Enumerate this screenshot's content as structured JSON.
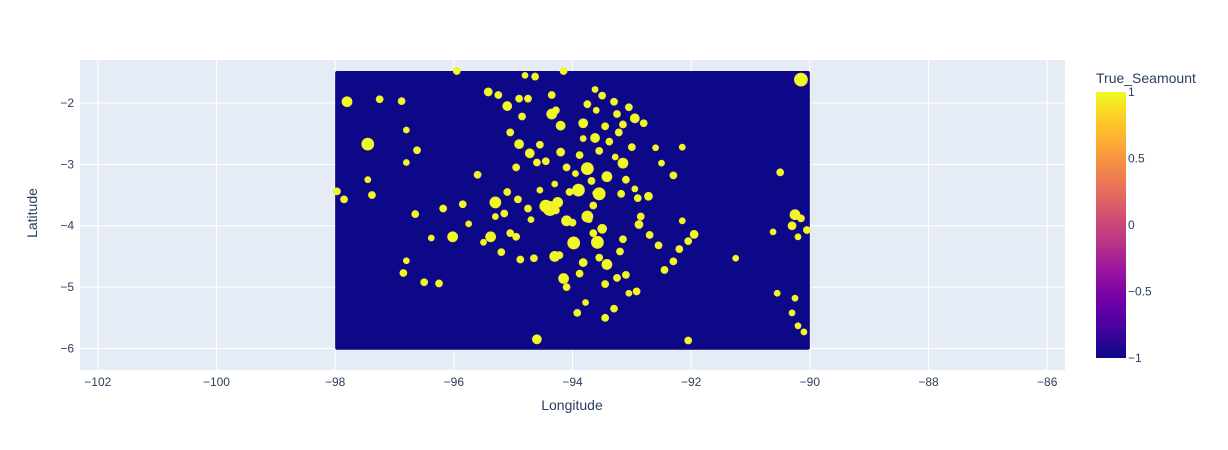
{
  "chart_data": {
    "type": "scatter",
    "xlabel": "Longitude",
    "ylabel": "Latitude",
    "xlim": [
      -102.3,
      -85.7
    ],
    "ylim": [
      -6.35,
      -1.3
    ],
    "x_ticks": [
      -102,
      -100,
      -98,
      -96,
      -94,
      -92,
      -90,
      -88,
      -86
    ],
    "x_tick_labels": [
      "−102",
      "−100",
      "−98",
      "−96",
      "−94",
      "−92",
      "−90",
      "−88",
      "−86"
    ],
    "y_ticks": [
      -2,
      -3,
      -4,
      -5,
      -6
    ],
    "y_tick_labels": [
      "−2",
      "−3",
      "−4",
      "−5",
      "−6"
    ],
    "grid": true,
    "background_color": "#e5ecf6",
    "colorbar": {
      "title": "True_Seamount",
      "min": -1,
      "max": 1,
      "ticks": [
        1,
        0.5,
        0,
        -0.5,
        -1
      ],
      "tick_labels": [
        "1",
        "0.5",
        "0",
        "−0.5",
        "−1"
      ],
      "colorscale": [
        "#0d0887",
        "#46039f",
        "#7201a8",
        "#9c179e",
        "#bd3786",
        "#d8576b",
        "#ed7953",
        "#fb9f3a",
        "#fdca26",
        "#f0f921"
      ]
    },
    "background_region": {
      "x": [
        -98,
        -90
      ],
      "y": [
        -6.02,
        -1.48
      ],
      "value": -1,
      "color": "#0d0887"
    },
    "series": [
      {
        "value": 1,
        "color": "#f0f921",
        "points": [
          [
            -97.8,
            -1.98,
            5
          ],
          [
            -97.25,
            -1.94,
            3.5
          ],
          [
            -96.88,
            -1.97,
            3.5
          ],
          [
            -96.8,
            -2.44,
            3
          ],
          [
            -96.62,
            -2.77,
            3.5
          ],
          [
            -96.8,
            -2.97,
            3
          ],
          [
            -97.45,
            -2.67,
            6
          ],
          [
            -97.45,
            -3.25,
            3
          ],
          [
            -97.38,
            -3.5,
            3.5
          ],
          [
            -97.97,
            -3.44,
            3.5
          ],
          [
            -97.85,
            -3.57,
            3.5
          ],
          [
            -96.65,
            -3.81,
            3.5
          ],
          [
            -96.38,
            -4.2,
            3
          ],
          [
            -96.18,
            -3.72,
            3.5
          ],
          [
            -96.02,
            -4.18,
            5
          ],
          [
            -95.85,
            -3.65,
            3.5
          ],
          [
            -95.75,
            -3.97,
            3
          ],
          [
            -96.8,
            -4.57,
            3
          ],
          [
            -96.85,
            -4.77,
            3.5
          ],
          [
            -96.5,
            -4.92,
            3.5
          ],
          [
            -96.25,
            -4.94,
            3.5
          ],
          [
            -95.6,
            -3.17,
            3.5
          ],
          [
            -95.5,
            -4.27,
            3
          ],
          [
            -95.38,
            -4.18,
            5
          ],
          [
            -95.3,
            -3.62,
            5.5
          ],
          [
            -95.3,
            -3.85,
            3
          ],
          [
            -95.2,
            -4.43,
            3.5
          ],
          [
            -95.15,
            -3.8,
            3.5
          ],
          [
            -95.05,
            -4.12,
            3.5
          ],
          [
            -94.95,
            -4.18,
            3.5
          ],
          [
            -94.88,
            -4.55,
            3.5
          ],
          [
            -94.75,
            -3.72,
            3.5
          ],
          [
            -94.7,
            -3.9,
            3
          ],
          [
            -94.65,
            -4.53,
            3.5
          ],
          [
            -94.6,
            -5.85,
            4.5
          ],
          [
            -94.38,
            -3.72,
            7
          ],
          [
            -94.3,
            -4.5,
            5
          ],
          [
            -94.28,
            -3.75,
            3.5
          ],
          [
            -94.22,
            -4.48,
            3.5
          ],
          [
            -94.15,
            -4.86,
            5
          ],
          [
            -94.1,
            -3.92,
            5
          ],
          [
            -94.1,
            -5.0,
            3.5
          ],
          [
            -94.0,
            -3.95,
            3.5
          ],
          [
            -93.98,
            -4.28,
            6
          ],
          [
            -93.92,
            -5.42,
            3.5
          ],
          [
            -93.88,
            -4.78,
            3.5
          ],
          [
            -93.82,
            -4.6,
            4
          ],
          [
            -93.78,
            -5.25,
            3
          ],
          [
            -93.75,
            -3.85,
            5.5
          ],
          [
            -93.65,
            -4.12,
            3.5
          ],
          [
            -93.58,
            -4.27,
            6
          ],
          [
            -93.55,
            -4.52,
            3.5
          ],
          [
            -93.5,
            -4.05,
            4.5
          ],
          [
            -93.45,
            -4.95,
            3.5
          ],
          [
            -93.45,
            -5.5,
            3.5
          ],
          [
            -93.42,
            -4.63,
            5
          ],
          [
            -93.3,
            -5.35,
            3.5
          ],
          [
            -93.25,
            -4.85,
            3.5
          ],
          [
            -93.2,
            -4.42,
            3.5
          ],
          [
            -93.15,
            -4.22,
            3.5
          ],
          [
            -93.1,
            -4.8,
            3.5
          ],
          [
            -93.05,
            -5.1,
            3
          ],
          [
            -92.92,
            -5.07,
            3.5
          ],
          [
            -92.88,
            -3.98,
            4
          ],
          [
            -92.7,
            -4.15,
            3.5
          ],
          [
            -92.55,
            -4.32,
            3.5
          ],
          [
            -92.45,
            -4.72,
            3.5
          ],
          [
            -92.3,
            -4.58,
            3.5
          ],
          [
            -92.2,
            -4.38,
            3.5
          ],
          [
            -92.15,
            -3.92,
            3
          ],
          [
            -92.05,
            -4.25,
            3.5
          ],
          [
            -91.95,
            -4.14,
            4
          ],
          [
            -92.05,
            -5.87,
            3.5
          ],
          [
            -91.25,
            -4.53,
            3
          ],
          [
            -95.05,
            -2.48,
            3.5
          ],
          [
            -94.9,
            -2.67,
            4.5
          ],
          [
            -94.85,
            -2.22,
            3.5
          ],
          [
            -94.72,
            -2.82,
            4.5
          ],
          [
            -94.6,
            -2.97,
            3.5
          ],
          [
            -94.55,
            -2.68,
            3.5
          ],
          [
            -94.45,
            -2.95,
            3.5
          ],
          [
            -94.35,
            -2.18,
            5
          ],
          [
            -94.35,
            -1.87,
            3.5
          ],
          [
            -94.28,
            -2.12,
            3.5
          ],
          [
            -94.2,
            -2.8,
            4
          ],
          [
            -94.2,
            -2.37,
            4.5
          ],
          [
            -94.1,
            -3.05,
            3.5
          ],
          [
            -94.05,
            -3.45,
            3.5
          ],
          [
            -93.95,
            -3.15,
            3
          ],
          [
            -93.9,
            -3.42,
            6
          ],
          [
            -93.88,
            -2.85,
            3.5
          ],
          [
            -93.82,
            -2.33,
            4.5
          ],
          [
            -93.75,
            -3.07,
            6
          ],
          [
            -93.75,
            -2.02,
            3.5
          ],
          [
            -93.68,
            -3.27,
            3.5
          ],
          [
            -93.65,
            -3.67,
            3.5
          ],
          [
            -93.62,
            -2.57,
            4.5
          ],
          [
            -93.6,
            -2.12,
            3
          ],
          [
            -93.55,
            -3.48,
            6
          ],
          [
            -93.5,
            -1.88,
            3.5
          ],
          [
            -93.45,
            -2.38,
            3.5
          ],
          [
            -93.42,
            -3.2,
            5
          ],
          [
            -93.38,
            -2.63,
            3.5
          ],
          [
            -93.3,
            -1.98,
            3.5
          ],
          [
            -93.28,
            -2.88,
            3
          ],
          [
            -93.25,
            -2.18,
            3.5
          ],
          [
            -93.22,
            -2.48,
            3.5
          ],
          [
            -93.18,
            -3.48,
            3.5
          ],
          [
            -93.15,
            -2.98,
            5
          ],
          [
            -93.1,
            -3.25,
            3.5
          ],
          [
            -93.0,
            -2.72,
            3.5
          ],
          [
            -92.95,
            -2.25,
            4.5
          ],
          [
            -92.85,
            -3.85,
            3.5
          ],
          [
            -92.8,
            -2.33,
            3.5
          ],
          [
            -92.72,
            -3.52,
            4
          ],
          [
            -92.5,
            -2.98,
            3
          ],
          [
            -92.3,
            -3.18,
            3.5
          ],
          [
            -92.15,
            -2.72,
            3
          ],
          [
            -93.05,
            -2.07,
            3.5
          ],
          [
            -93.15,
            -2.35,
            3.5
          ],
          [
            -93.82,
            -2.58,
            3
          ],
          [
            -93.55,
            -2.78,
            3.5
          ],
          [
            -93.62,
            -1.78,
            3
          ],
          [
            -94.75,
            -1.93,
            3.5
          ],
          [
            -94.63,
            -1.57,
            3.5
          ],
          [
            -94.8,
            -1.55,
            3
          ],
          [
            -94.9,
            -1.93,
            3.5
          ],
          [
            -95.1,
            -2.05,
            4.5
          ],
          [
            -95.25,
            -1.87,
            3.5
          ],
          [
            -95.42,
            -1.82,
            4
          ],
          [
            -94.15,
            -1.48,
            3.5
          ],
          [
            -95.95,
            -1.48,
            3.5
          ],
          [
            -94.95,
            -3.05,
            3.5
          ],
          [
            -95.1,
            -3.45,
            3.5
          ],
          [
            -94.92,
            -3.57,
            3.5
          ],
          [
            -94.55,
            -3.42,
            3
          ],
          [
            -94.45,
            -3.68,
            6
          ],
          [
            -94.25,
            -3.62,
            5
          ],
          [
            -94.3,
            -3.32,
            3
          ],
          [
            -93.6,
            -3.47,
            3.5
          ],
          [
            -93.72,
            -3.9,
            3
          ],
          [
            -92.9,
            -3.55,
            3.5
          ],
          [
            -92.95,
            -3.4,
            3
          ],
          [
            -92.6,
            -2.73,
            3
          ],
          [
            -90.5,
            -3.13,
            3.5
          ],
          [
            -90.25,
            -3.82,
            5
          ],
          [
            -90.62,
            -4.1,
            3
          ],
          [
            -90.3,
            -4.0,
            4
          ],
          [
            -90.2,
            -4.18,
            3
          ],
          [
            -90.15,
            -3.88,
            3.5
          ],
          [
            -90.05,
            -4.07,
            3.5
          ],
          [
            -90.55,
            -5.1,
            3
          ],
          [
            -90.3,
            -5.42,
            3
          ],
          [
            -90.2,
            -5.63,
            3
          ],
          [
            -90.1,
            -5.73,
            3
          ],
          [
            -90.25,
            -5.18,
            3
          ],
          [
            -90.15,
            -1.62,
            6.5
          ]
        ]
      }
    ]
  }
}
